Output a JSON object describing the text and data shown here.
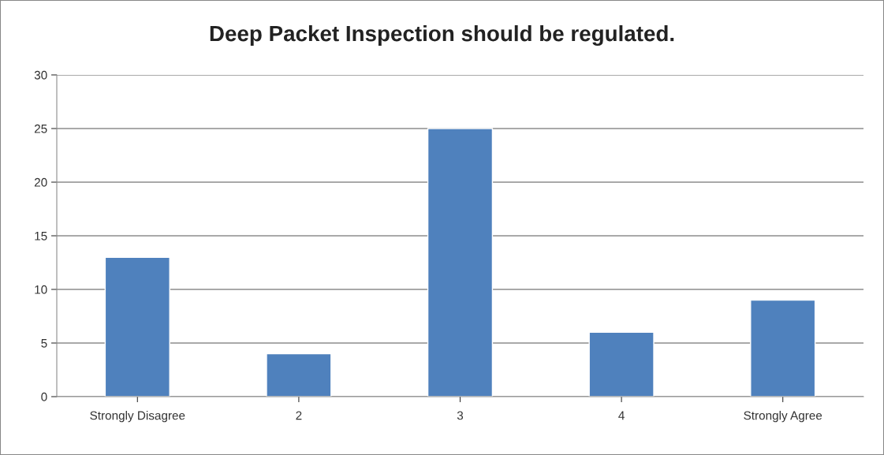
{
  "chart_data": {
    "type": "bar",
    "title": "Deep Packet Inspection should be regulated.",
    "categories": [
      "Strongly Disagree",
      "2",
      "3",
      "4",
      "Strongly Agree"
    ],
    "values": [
      13,
      4,
      25,
      6,
      9
    ],
    "color": "#4f81bd",
    "ylim": [
      0,
      30
    ],
    "yticks": [
      0,
      5,
      10,
      15,
      20,
      25,
      30
    ],
    "grid": "y"
  }
}
